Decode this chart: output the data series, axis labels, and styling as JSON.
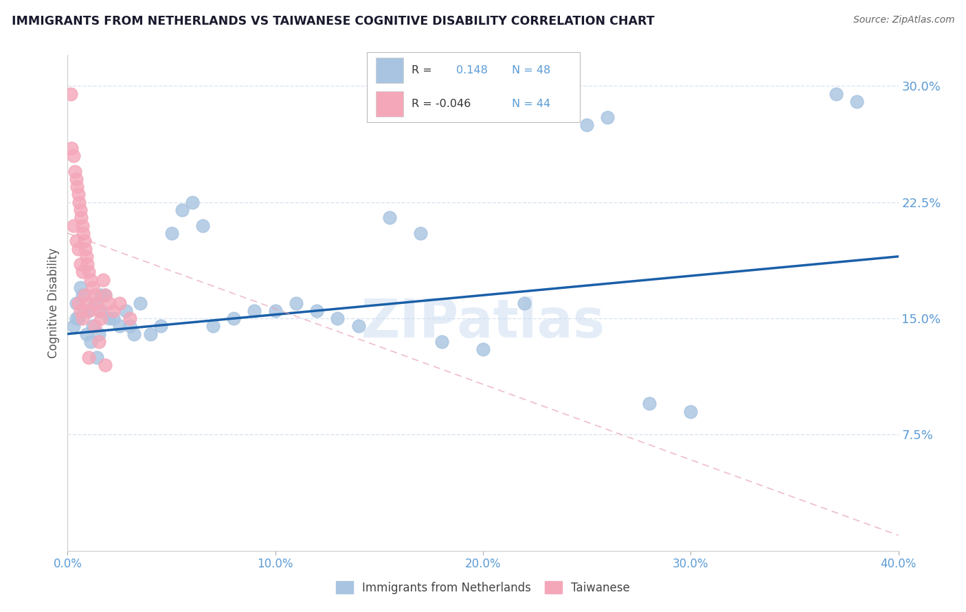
{
  "title": "IMMIGRANTS FROM NETHERLANDS VS TAIWANESE COGNITIVE DISABILITY CORRELATION CHART",
  "source": "Source: ZipAtlas.com",
  "ylabel": "Cognitive Disability",
  "watermark": "ZIPatlas",
  "legend_label_blue": "Immigrants from Netherlands",
  "legend_label_pink": "Taiwanese",
  "xlim": [
    0.0,
    40.0
  ],
  "ylim": [
    0.0,
    32.0
  ],
  "yticks": [
    7.5,
    15.0,
    22.5,
    30.0
  ],
  "ytick_labels": [
    "7.5%",
    "15.0%",
    "22.5%",
    "30.0%"
  ],
  "xticks": [
    0.0,
    10.0,
    20.0,
    30.0,
    40.0
  ],
  "xtick_labels": [
    "0.0%",
    "10.0%",
    "20.0%",
    "30.0%",
    "40.0%"
  ],
  "blue_color": "#a8c4e0",
  "pink_color": "#f4a7b9",
  "blue_line_color": "#1a5fa8",
  "pink_line_color": "#e8a0b0",
  "blue_scatter": [
    [
      0.3,
      14.5
    ],
    [
      0.4,
      16.0
    ],
    [
      0.5,
      15.0
    ],
    [
      0.6,
      17.0
    ],
    [
      0.7,
      16.5
    ],
    [
      0.8,
      15.5
    ],
    [
      0.9,
      14.0
    ],
    [
      1.0,
      15.5
    ],
    [
      1.1,
      13.5
    ],
    [
      1.2,
      14.5
    ],
    [
      1.3,
      16.0
    ],
    [
      1.4,
      12.5
    ],
    [
      1.5,
      14.0
    ],
    [
      1.6,
      15.5
    ],
    [
      1.8,
      16.5
    ],
    [
      2.0,
      15.0
    ],
    [
      2.5,
      14.5
    ],
    [
      2.8,
      15.5
    ],
    [
      3.0,
      14.5
    ],
    [
      3.5,
      16.0
    ],
    [
      4.0,
      14.0
    ],
    [
      4.5,
      14.5
    ],
    [
      5.0,
      20.5
    ],
    [
      5.5,
      22.0
    ],
    [
      6.0,
      22.5
    ],
    [
      6.5,
      21.0
    ],
    [
      7.0,
      14.5
    ],
    [
      8.0,
      15.0
    ],
    [
      9.0,
      15.5
    ],
    [
      10.0,
      15.5
    ],
    [
      11.0,
      16.0
    ],
    [
      12.0,
      15.5
    ],
    [
      13.0,
      15.0
    ],
    [
      14.0,
      14.5
    ],
    [
      15.5,
      21.5
    ],
    [
      17.0,
      20.5
    ],
    [
      18.0,
      13.5
    ],
    [
      20.0,
      13.0
    ],
    [
      22.0,
      16.0
    ],
    [
      25.0,
      27.5
    ],
    [
      26.0,
      28.0
    ],
    [
      28.0,
      9.5
    ],
    [
      30.0,
      9.0
    ],
    [
      37.0,
      29.5
    ],
    [
      38.0,
      29.0
    ],
    [
      0.4,
      15.0
    ],
    [
      1.6,
      16.5
    ],
    [
      2.2,
      15.0
    ],
    [
      3.2,
      14.0
    ]
  ],
  "pink_scatter": [
    [
      0.15,
      29.5
    ],
    [
      0.2,
      26.0
    ],
    [
      0.3,
      25.5
    ],
    [
      0.35,
      24.5
    ],
    [
      0.4,
      24.0
    ],
    [
      0.45,
      23.5
    ],
    [
      0.5,
      23.0
    ],
    [
      0.55,
      22.5
    ],
    [
      0.6,
      22.0
    ],
    [
      0.65,
      21.5
    ],
    [
      0.7,
      21.0
    ],
    [
      0.75,
      20.5
    ],
    [
      0.8,
      20.0
    ],
    [
      0.85,
      19.5
    ],
    [
      0.9,
      19.0
    ],
    [
      0.95,
      18.5
    ],
    [
      1.0,
      18.0
    ],
    [
      1.1,
      17.5
    ],
    [
      1.2,
      17.0
    ],
    [
      1.3,
      16.5
    ],
    [
      1.4,
      16.0
    ],
    [
      1.5,
      15.5
    ],
    [
      1.6,
      15.0
    ],
    [
      1.7,
      17.5
    ],
    [
      1.8,
      16.5
    ],
    [
      2.0,
      16.0
    ],
    [
      2.2,
      15.5
    ],
    [
      0.5,
      16.0
    ],
    [
      0.6,
      15.5
    ],
    [
      0.7,
      15.0
    ],
    [
      0.8,
      16.5
    ],
    [
      0.9,
      16.0
    ],
    [
      1.0,
      15.5
    ],
    [
      1.3,
      14.5
    ],
    [
      1.5,
      13.5
    ],
    [
      2.5,
      16.0
    ],
    [
      3.0,
      15.0
    ],
    [
      0.3,
      21.0
    ],
    [
      0.4,
      20.0
    ],
    [
      0.5,
      19.5
    ],
    [
      0.6,
      18.5
    ],
    [
      0.7,
      18.0
    ],
    [
      1.0,
      12.5
    ],
    [
      1.8,
      12.0
    ]
  ],
  "blue_line_x": [
    0.0,
    40.0
  ],
  "blue_line_y": [
    14.0,
    19.0
  ],
  "pink_line_x": [
    0.0,
    40.0
  ],
  "pink_line_y": [
    20.5,
    1.0
  ],
  "title_color": "#1a1a2e",
  "source_color": "#666666",
  "axis_label_color": "#555555",
  "tick_color": "#5b9bd5",
  "grid_color": "#d8e4f0",
  "background_color": "#ffffff"
}
